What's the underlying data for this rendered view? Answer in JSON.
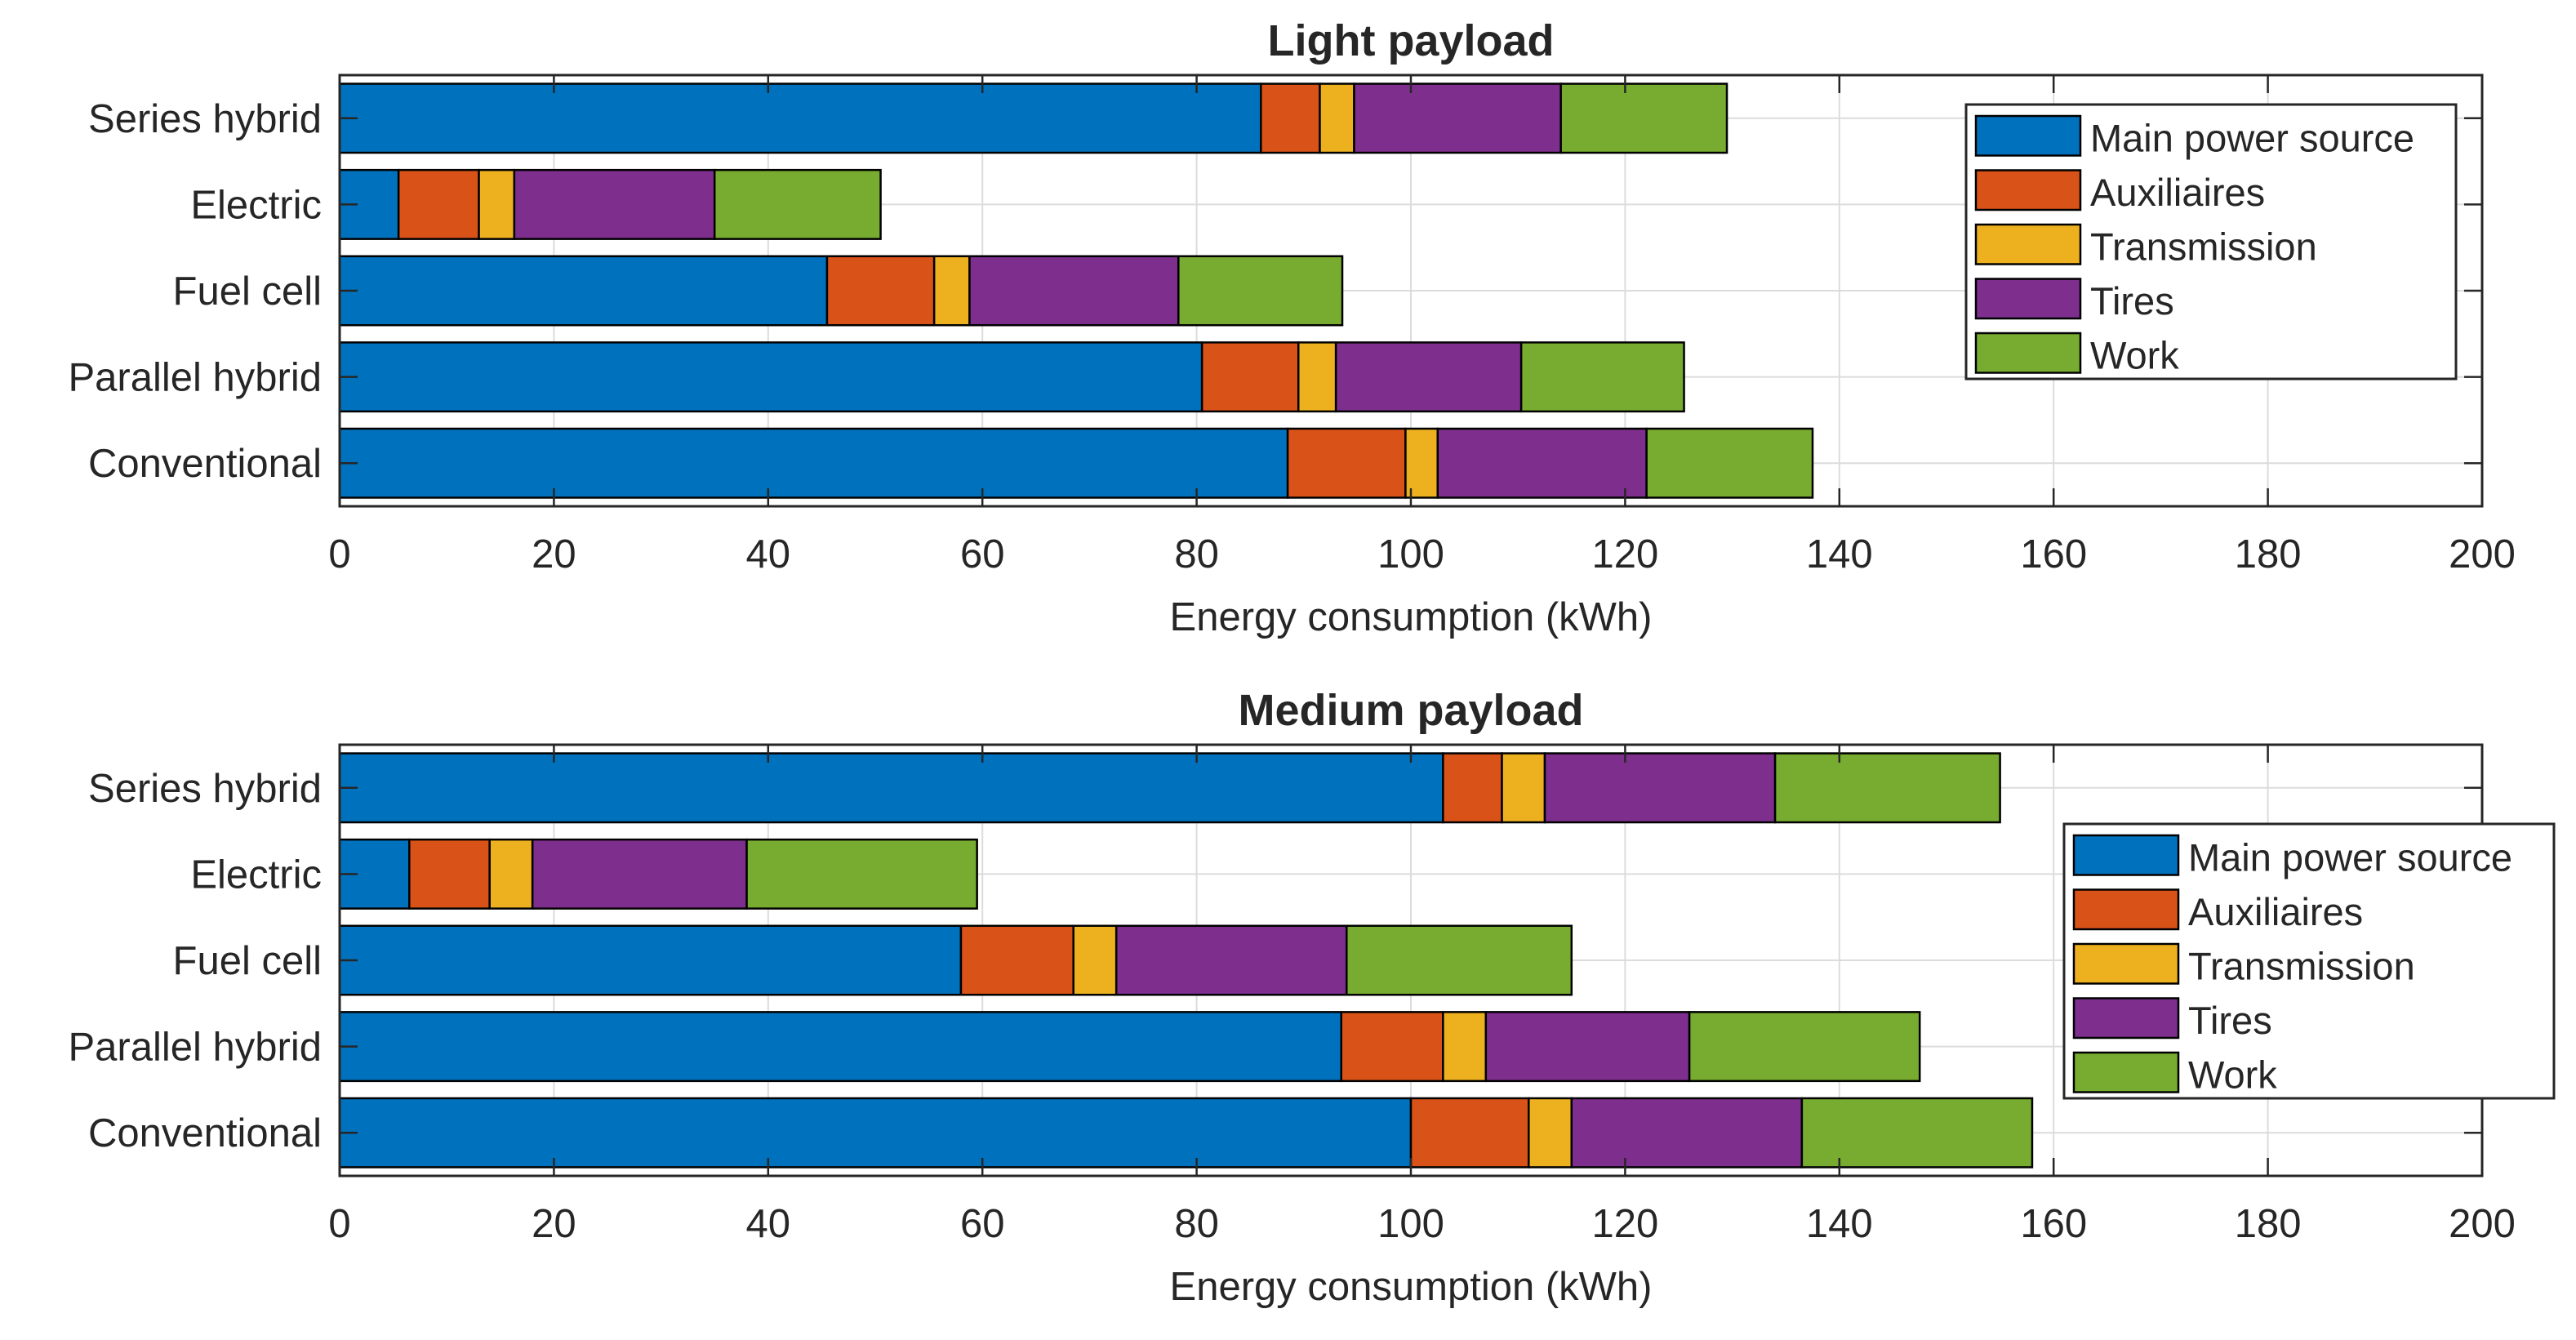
{
  "chart_data": [
    {
      "type": "bar",
      "orientation": "horizontal",
      "stacked": true,
      "title": "Light payload",
      "xlabel": "Energy consumption (kWh)",
      "ylabel": "",
      "xlim": [
        0,
        200
      ],
      "xticks": [
        0,
        20,
        40,
        60,
        80,
        100,
        120,
        140,
        160,
        180,
        200
      ],
      "grid": true,
      "legend_position": "top-right",
      "categories": [
        "Series hybrid",
        "Electric",
        "Fuel cell",
        "Parallel hybrid",
        "Conventional"
      ],
      "series": [
        {
          "name": "Main power source",
          "color": "#0072BD",
          "values": [
            86,
            5.5,
            45.5,
            80.5,
            88.5
          ]
        },
        {
          "name": "Auxiliaires",
          "color": "#D95319",
          "values": [
            5.5,
            7.5,
            10,
            9,
            11
          ]
        },
        {
          "name": "Transmission",
          "color": "#EDB120",
          "values": [
            3.2,
            3.3,
            3.3,
            3.5,
            3
          ]
        },
        {
          "name": "Tires",
          "color": "#7E2F8E",
          "values": [
            19.3,
            18.7,
            19.5,
            17.3,
            19.5
          ]
        },
        {
          "name": "Work",
          "color": "#77AC30",
          "values": [
            15.5,
            15.5,
            15.3,
            15.2,
            15.5
          ]
        }
      ]
    },
    {
      "type": "bar",
      "orientation": "horizontal",
      "stacked": true,
      "title": "Medium payload",
      "xlabel": "Energy consumption (kWh)",
      "ylabel": "",
      "xlim": [
        0,
        200
      ],
      "xticks": [
        0,
        20,
        40,
        60,
        80,
        100,
        120,
        140,
        160,
        180,
        200
      ],
      "grid": true,
      "legend_position": "right",
      "categories": [
        "Series hybrid",
        "Electric",
        "Fuel cell",
        "Parallel hybrid",
        "Conventional"
      ],
      "series": [
        {
          "name": "Main power source",
          "color": "#0072BD",
          "values": [
            103,
            6.5,
            58,
            93.5,
            100
          ]
        },
        {
          "name": "Auxiliaires",
          "color": "#D95319",
          "values": [
            5.5,
            7.5,
            10.5,
            9.5,
            11
          ]
        },
        {
          "name": "Transmission",
          "color": "#EDB120",
          "values": [
            4,
            4,
            4,
            4,
            4
          ]
        },
        {
          "name": "Tires",
          "color": "#7E2F8E",
          "values": [
            21.5,
            20,
            21.5,
            19,
            21.5
          ]
        },
        {
          "name": "Work",
          "color": "#77AC30",
          "values": [
            21,
            21.5,
            21,
            21.5,
            21.5
          ]
        }
      ]
    }
  ]
}
